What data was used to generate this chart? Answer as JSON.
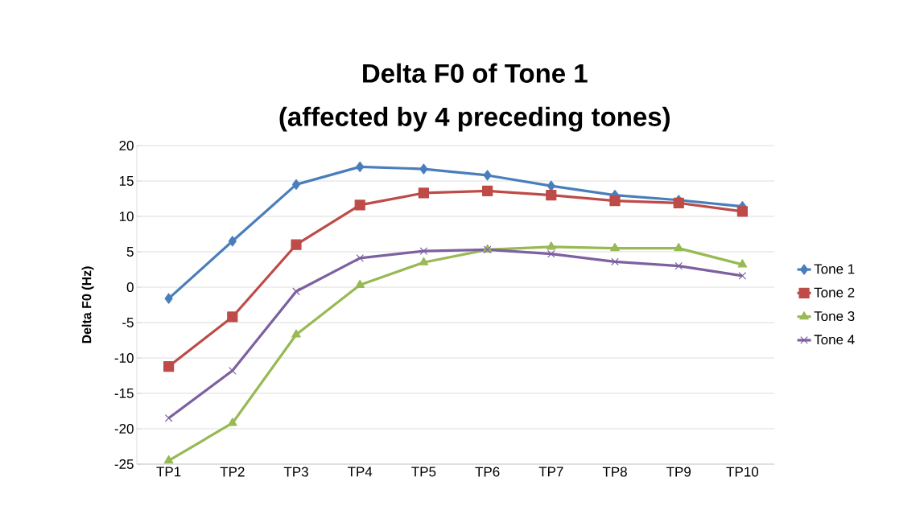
{
  "chart_data": {
    "type": "line",
    "title": "Delta F0 of Tone 1",
    "subtitle": "(affected by 4 preceding tones)",
    "ylabel": "Delta F0 (Hz)",
    "categories": [
      "TP1",
      "TP2",
      "TP3",
      "TP4",
      "TP5",
      "TP6",
      "TP7",
      "TP8",
      "TP9",
      "TP10"
    ],
    "series": [
      {
        "name": "Tone 1",
        "color": "#4a7ebb",
        "marker": "diamond",
        "values": [
          -1.6,
          6.5,
          14.5,
          17.0,
          16.7,
          15.8,
          14.3,
          13.0,
          12.3,
          11.4
        ]
      },
      {
        "name": "Tone 2",
        "color": "#be4b48",
        "marker": "square",
        "values": [
          -11.2,
          -4.2,
          6.0,
          11.6,
          13.3,
          13.6,
          13.0,
          12.2,
          11.9,
          10.7
        ]
      },
      {
        "name": "Tone 3",
        "color": "#98b954",
        "marker": "triangle",
        "values": [
          -24.5,
          -19.2,
          -6.7,
          0.3,
          3.5,
          5.3,
          5.7,
          5.5,
          5.5,
          3.2
        ]
      },
      {
        "name": "Tone 4",
        "color": "#7d60a0",
        "marker": "cross",
        "values": [
          -18.5,
          -11.8,
          -0.6,
          4.1,
          5.1,
          5.3,
          4.7,
          3.6,
          3.0,
          1.6
        ]
      }
    ],
    "ylim": [
      -25,
      20
    ],
    "yticks": [
      -25,
      -20,
      -15,
      -10,
      -5,
      0,
      5,
      10,
      15,
      20
    ],
    "grid": "y",
    "legend": "right",
    "line_style": "solid"
  }
}
